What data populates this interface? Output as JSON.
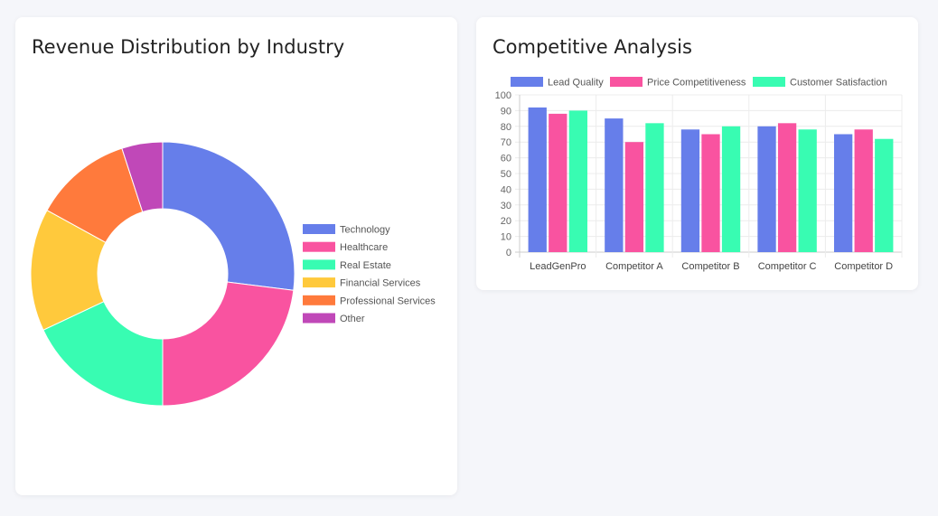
{
  "chart_data": [
    {
      "type": "pie",
      "title": "Revenue Distribution by Industry",
      "labels": [
        "Technology",
        "Healthcare",
        "Real Estate",
        "Financial Services",
        "Professional Services",
        "Other"
      ],
      "values": [
        27,
        23,
        18,
        15,
        12,
        5
      ],
      "colors": [
        "#667eea",
        "#f953a0",
        "#38fcb2",
        "#ffc93c",
        "#ff7a3c",
        "#c048b8"
      ],
      "legend": "right"
    },
    {
      "type": "bar",
      "title": "Competitive Analysis",
      "categories": [
        "LeadGenPro",
        "Competitor A",
        "Competitor B",
        "Competitor C",
        "Competitor D"
      ],
      "series": [
        {
          "name": "Lead Quality",
          "values": [
            92,
            85,
            78,
            80,
            75
          ],
          "color": "#667eea"
        },
        {
          "name": "Price Competitiveness",
          "values": [
            88,
            70,
            75,
            82,
            78
          ],
          "color": "#f953a0"
        },
        {
          "name": "Customer Satisfaction",
          "values": [
            90,
            82,
            80,
            78,
            72
          ],
          "color": "#38fcb2"
        }
      ],
      "ylim": [
        0,
        100
      ],
      "yticks": [
        0,
        10,
        20,
        30,
        40,
        50,
        60,
        70,
        80,
        90,
        100
      ],
      "grid": true,
      "legend": "top"
    }
  ]
}
